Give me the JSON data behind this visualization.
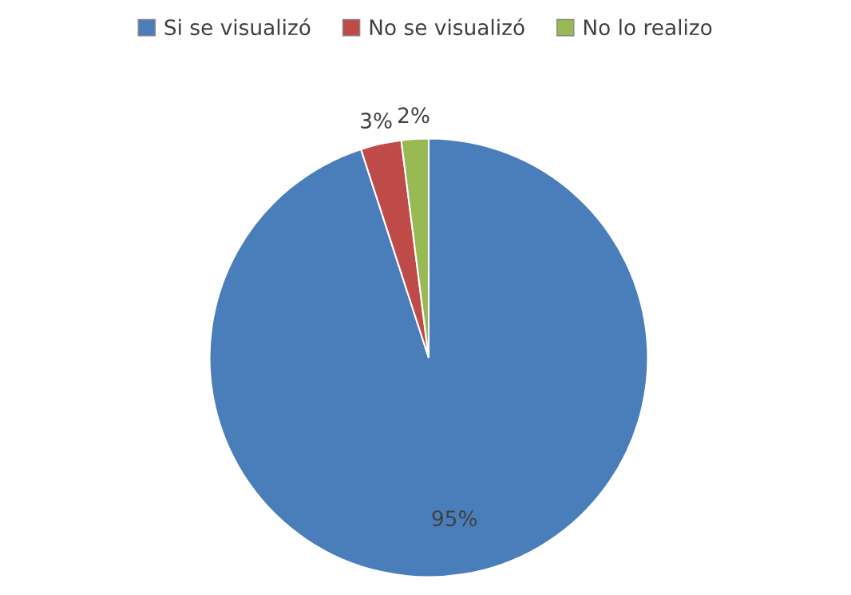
{
  "chart_data": {
    "type": "pie",
    "categories": [
      "Si se visualizó",
      "No se visualizó",
      "No lo realizo"
    ],
    "values": [
      95,
      3,
      2
    ],
    "colors": [
      "#4a7ebb",
      "#be4b48",
      "#98b954"
    ],
    "value_labels": [
      "95%",
      "3%",
      "2%"
    ],
    "legend": "top"
  }
}
